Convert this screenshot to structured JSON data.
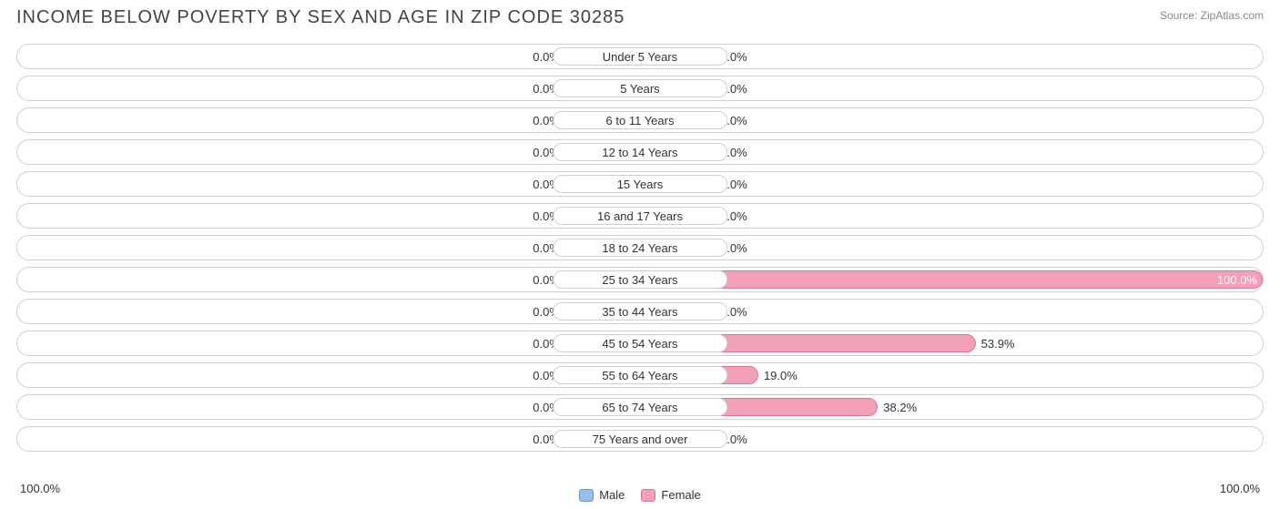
{
  "title": "INCOME BELOW POVERTY BY SEX AND AGE IN ZIP CODE 30285",
  "source": "Source: ZipAtlas.com",
  "colors": {
    "male_fill": "#9cbde9",
    "male_border": "#6f99d6",
    "female_fill": "#f2a0b8",
    "female_border": "#e57296",
    "track_border": "#cfcfcf",
    "text": "#333333",
    "bg": "#ffffff"
  },
  "chart": {
    "type": "diverging-bar",
    "min_bar_pct": 12,
    "label_pill_width_pct": 14,
    "axis_left": "100.0%",
    "axis_right": "100.0%",
    "rows": [
      {
        "label": "Under 5 Years",
        "male": 0.0,
        "female": 0.0
      },
      {
        "label": "5 Years",
        "male": 0.0,
        "female": 0.0
      },
      {
        "label": "6 to 11 Years",
        "male": 0.0,
        "female": 0.0
      },
      {
        "label": "12 to 14 Years",
        "male": 0.0,
        "female": 0.0
      },
      {
        "label": "15 Years",
        "male": 0.0,
        "female": 0.0
      },
      {
        "label": "16 and 17 Years",
        "male": 0.0,
        "female": 0.0
      },
      {
        "label": "18 to 24 Years",
        "male": 0.0,
        "female": 0.0
      },
      {
        "label": "25 to 34 Years",
        "male": 0.0,
        "female": 100.0
      },
      {
        "label": "35 to 44 Years",
        "male": 0.0,
        "female": 0.0
      },
      {
        "label": "45 to 54 Years",
        "male": 0.0,
        "female": 53.9
      },
      {
        "label": "55 to 64 Years",
        "male": 0.0,
        "female": 19.0
      },
      {
        "label": "65 to 74 Years",
        "male": 0.0,
        "female": 38.2
      },
      {
        "label": "75 Years and over",
        "male": 0.0,
        "female": 0.0
      }
    ]
  },
  "legend": {
    "male": "Male",
    "female": "Female"
  }
}
